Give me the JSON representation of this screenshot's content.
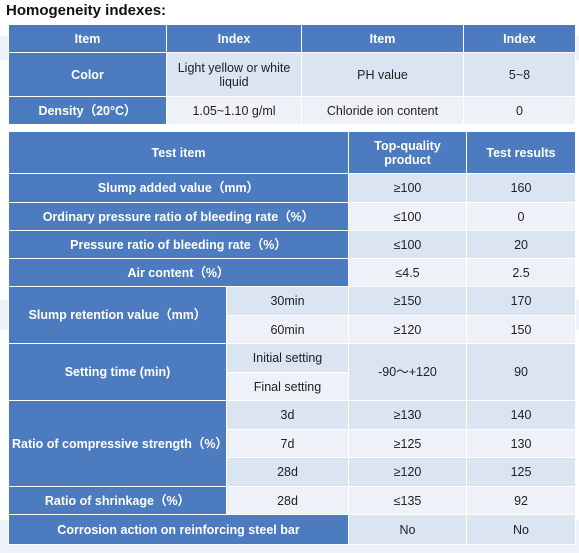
{
  "page": {
    "title": "Homogeneity indexes:",
    "colors": {
      "header": "#4c7bc0",
      "cell_light": "#dbe5f2",
      "cell_white": "#eef2f8"
    }
  },
  "homogeneity": {
    "headers": [
      "Item",
      "Index",
      "Item",
      "Index"
    ],
    "rows": [
      {
        "item1": "Color",
        "index1": "Light yellow or white liquid",
        "item2": "PH value",
        "index2": "5~8"
      },
      {
        "item1": "Density（20°C）",
        "index1": "1.05~1.10 g/ml",
        "item2": "Chloride ion content",
        "index2": "0"
      }
    ]
  },
  "tests": {
    "headers": {
      "item": "Test item",
      "top": "Top-quality product",
      "result": "Test results"
    },
    "slump_added": {
      "label": "Slump added value（mm）",
      "top": "≥100",
      "result": "160"
    },
    "bleeding_ordinary": {
      "label": "Ordinary pressure ratio of bleeding rate（%）",
      "top": "≤100",
      "result": "0"
    },
    "bleeding_pressure": {
      "label": "Pressure ratio of bleeding rate（%）",
      "top": "≤100",
      "result": "20"
    },
    "air_content": {
      "label": "Air content（%）",
      "top": "≤4.5",
      "result": "2.5"
    },
    "slump_retention": {
      "label": "Slump retention value（mm）",
      "rows": [
        {
          "sub": "30min",
          "top": "≥150",
          "result": "170"
        },
        {
          "sub": "60min",
          "top": "≥120",
          "result": "150"
        }
      ]
    },
    "setting_time": {
      "label": "Setting time (min)",
      "sub1": "Initial setting",
      "sub2": "Final setting",
      "top": "-90～+120",
      "result": "90"
    },
    "compressive": {
      "label": "Ratio of compressive strength（%）",
      "rows": [
        {
          "sub": "3d",
          "top": "≥130",
          "result": "140"
        },
        {
          "sub": "7d",
          "top": "≥125",
          "result": "130"
        },
        {
          "sub": "28d",
          "top": "≥120",
          "result": "125"
        }
      ]
    },
    "shrinkage": {
      "label": "Ratio of shrinkage（%）",
      "sub": "28d",
      "top": "≤135",
      "result": "92"
    },
    "corrosion": {
      "label": "Corrosion action on reinforcing steel bar",
      "top": "No",
      "result": "No"
    }
  }
}
